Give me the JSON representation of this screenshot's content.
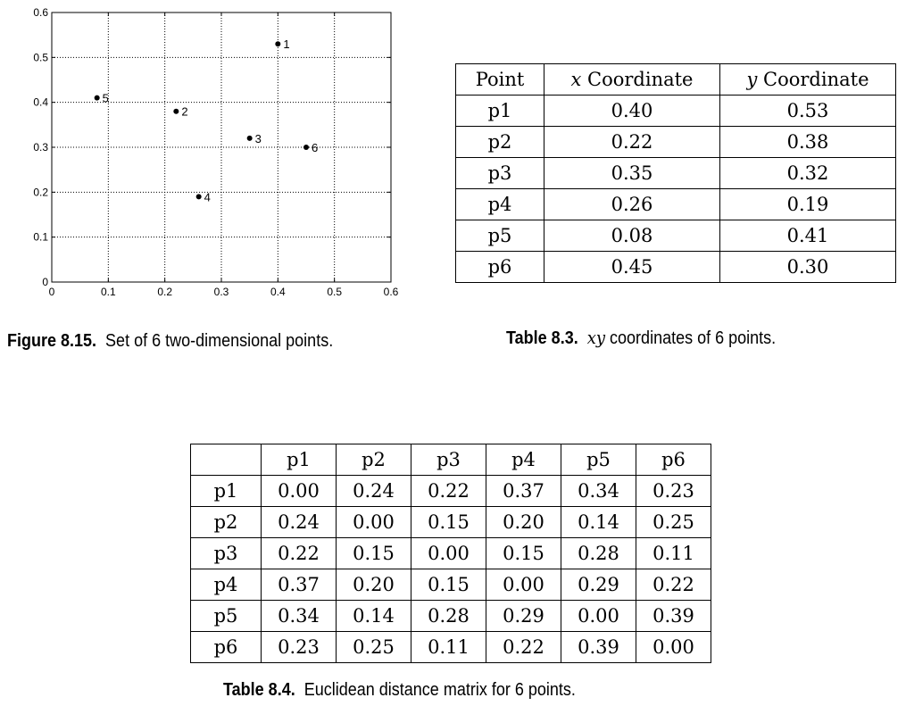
{
  "chart_data": {
    "type": "scatter",
    "points": [
      {
        "label": "1",
        "x": 0.4,
        "y": 0.53
      },
      {
        "label": "2",
        "x": 0.22,
        "y": 0.38
      },
      {
        "label": "3",
        "x": 0.35,
        "y": 0.32
      },
      {
        "label": "4",
        "x": 0.26,
        "y": 0.19
      },
      {
        "label": "5",
        "x": 0.08,
        "y": 0.41
      },
      {
        "label": "6",
        "x": 0.45,
        "y": 0.3
      }
    ],
    "xlim": [
      0,
      0.6
    ],
    "ylim": [
      0,
      0.6
    ],
    "xticks": [
      "0",
      "0.1",
      "0.2",
      "0.3",
      "0.4",
      "0.5",
      "0.6"
    ],
    "yticks": [
      "0",
      "0.1",
      "0.2",
      "0.3",
      "0.4",
      "0.5",
      "0.6"
    ],
    "grid": true,
    "grid_style": "dotted",
    "xlabel": "",
    "ylabel": "",
    "title": ""
  },
  "figure_caption": {
    "label": "Figure 8.15.",
    "text": "Set of 6 two-dimensional points."
  },
  "coord_table": {
    "headers": [
      "Point",
      "x Coordinate",
      "y Coordinate"
    ],
    "header_vars": [
      "x",
      "y"
    ],
    "header_suffix": " Coordinate",
    "rows": [
      [
        "p1",
        "0.40",
        "0.53"
      ],
      [
        "p2",
        "0.22",
        "0.38"
      ],
      [
        "p3",
        "0.35",
        "0.32"
      ],
      [
        "p4",
        "0.26",
        "0.19"
      ],
      [
        "p5",
        "0.08",
        "0.41"
      ],
      [
        "p6",
        "0.45",
        "0.30"
      ]
    ]
  },
  "coord_caption": {
    "label": "Table 8.3.",
    "var": "xy",
    "text": " coordinates of 6 points."
  },
  "distance_table": {
    "columns": [
      "p1",
      "p2",
      "p3",
      "p4",
      "p5",
      "p6"
    ],
    "rows": [
      {
        "label": "p1",
        "values": [
          "0.00",
          "0.24",
          "0.22",
          "0.37",
          "0.34",
          "0.23"
        ]
      },
      {
        "label": "p2",
        "values": [
          "0.24",
          "0.00",
          "0.15",
          "0.20",
          "0.14",
          "0.25"
        ]
      },
      {
        "label": "p3",
        "values": [
          "0.22",
          "0.15",
          "0.00",
          "0.15",
          "0.28",
          "0.11"
        ]
      },
      {
        "label": "p4",
        "values": [
          "0.37",
          "0.20",
          "0.15",
          "0.00",
          "0.29",
          "0.22"
        ]
      },
      {
        "label": "p5",
        "values": [
          "0.34",
          "0.14",
          "0.28",
          "0.29",
          "0.00",
          "0.39"
        ]
      },
      {
        "label": "p6",
        "values": [
          "0.23",
          "0.25",
          "0.11",
          "0.22",
          "0.39",
          "0.00"
        ]
      }
    ]
  },
  "distance_caption": {
    "label": "Table 8.4.",
    "text": "Euclidean distance matrix for 6 points."
  }
}
